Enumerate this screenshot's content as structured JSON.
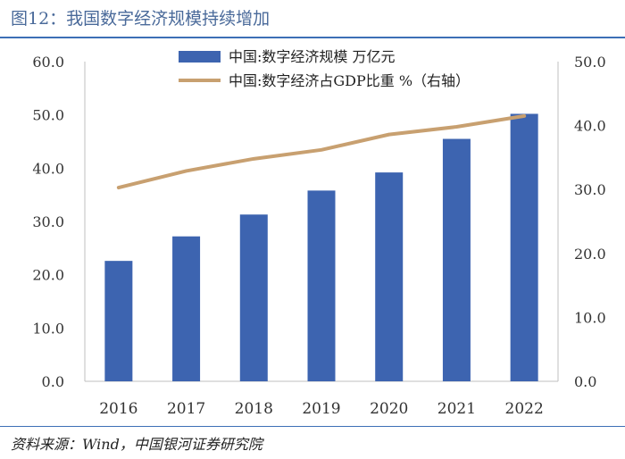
{
  "figure_title": "图12：我国数字经济规模持续增加",
  "source": "资料来源：Wind，中国银河证券研究院",
  "colors": {
    "bar": "#3d64b0",
    "line": "#c8a070",
    "title": "#4a6a9a",
    "rule": "#3d6fb6"
  },
  "chart_data": {
    "type": "bar",
    "categories": [
      "2016",
      "2017",
      "2018",
      "2019",
      "2020",
      "2021",
      "2022"
    ],
    "series": [
      {
        "name": "中国:数字经济规模 万亿元",
        "type": "bar",
        "axis": "left",
        "values": [
          22.6,
          27.2,
          31.3,
          35.8,
          39.2,
          45.5,
          50.2
        ]
      },
      {
        "name": "中国:数字经济占GDP比重 %（右轴）",
        "type": "line",
        "axis": "right",
        "values": [
          30.3,
          32.9,
          34.8,
          36.2,
          38.6,
          39.8,
          41.5
        ]
      }
    ],
    "y_left": {
      "lim": [
        0,
        60
      ],
      "ticks": [
        "0.0",
        "10.0",
        "20.0",
        "30.0",
        "40.0",
        "50.0",
        "60.0"
      ]
    },
    "y_right": {
      "lim": [
        0,
        50
      ],
      "ticks": [
        "0.0",
        "10.0",
        "20.0",
        "30.0",
        "40.0",
        "50.0"
      ]
    },
    "legend_position": "top-center",
    "grid": false
  }
}
